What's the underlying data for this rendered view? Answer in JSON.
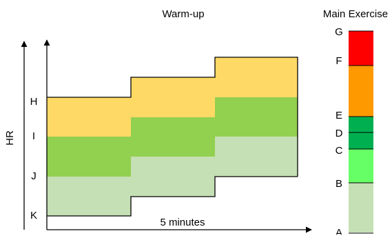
{
  "titles": {
    "warmup": "Warm-up",
    "main": "Main Exercise"
  },
  "axis": {
    "y_label": "HR",
    "x_label": "5 minutes",
    "hr_levels": [
      "H",
      "I",
      "J",
      "K"
    ]
  },
  "zone_bar": {
    "labels": [
      "G",
      "F",
      "E",
      "D",
      "C",
      "B",
      "A"
    ]
  },
  "colors": {
    "yellow": "#FFD966",
    "green": "#92D050",
    "light_green": "#C5E0B4",
    "red": "#FF0000",
    "orange": "#FF9900",
    "dark_green": "#00B050",
    "bright_green": "#66FF66",
    "pale_green": "#C5E0B4",
    "line": "#000000"
  }
}
